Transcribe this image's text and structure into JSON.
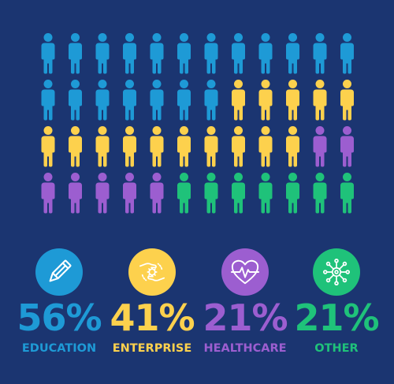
{
  "colors": {
    "background": "#1b3571",
    "education": "#1e9ad6",
    "enterprise": "#fdd14d",
    "healthcare": "#9c5ed0",
    "other": "#1fc27a",
    "icon_line": "#ffffff"
  },
  "chart_data": {
    "type": "pictograph",
    "title": "",
    "layout": "4 rows of 12 person icons, filled in reading order",
    "categories": [
      "EDUCATION",
      "ENTERPRISE",
      "HEALTHCARE",
      "OTHER"
    ],
    "icon_counts": [
      19,
      15,
      7,
      7
    ],
    "values": [
      56,
      41,
      21,
      21
    ],
    "value_labels": [
      "56%",
      "41%",
      "21%",
      "21%"
    ],
    "icons": [
      "pencil-icon",
      "hand-gear-icon",
      "heart-pulse-icon",
      "network-node-icon"
    ]
  }
}
